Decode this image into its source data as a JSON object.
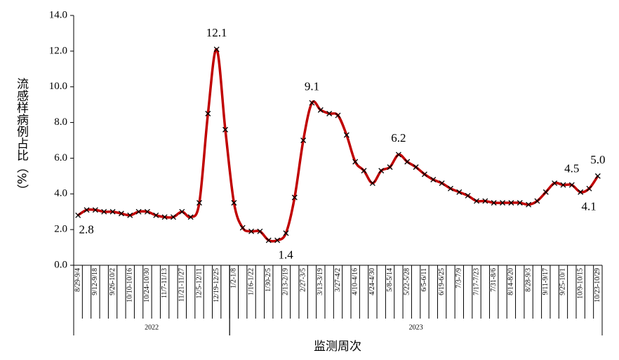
{
  "chart_data": {
    "type": "line",
    "y_label": "流感样病例占比（%）",
    "x_label": "监测周次",
    "categories": [
      "8/29-9/4",
      null,
      "9/12-9/18",
      null,
      "9/26-10/2",
      null,
      "10/10-10/16",
      null,
      "10/24-10/30",
      null,
      "11/7-11/13",
      null,
      "11/21-11/27",
      null,
      "12/5-12/11",
      null,
      "12/19-12/25",
      null,
      "1/2-1/8",
      null,
      "1/16-1/22",
      null,
      "1/30-2/5",
      null,
      "2/13-2/19",
      null,
      "2/27-3/5",
      null,
      "3/13-3/19",
      null,
      "3/27-4/2",
      null,
      "4/10-4/16",
      null,
      "4/24-4/30",
      null,
      "5/8-5/14",
      null,
      "5/22-5/28",
      null,
      "6/5-6/11",
      null,
      "6/19-6/25",
      null,
      "7/3-7/9",
      null,
      "7/17-7/23",
      null,
      "7/31-8/6",
      null,
      "8/14-8/20",
      null,
      "8/28-9/3",
      null,
      "9/11-9/17",
      null,
      "9/25-10/1",
      null,
      "10/9-10/15",
      null,
      "10/23-10/29"
    ],
    "groups": [
      {
        "label": "2022",
        "size": 18
      },
      {
        "label": "2023",
        "size": 43
      }
    ],
    "series": [
      {
        "name": "流感样病例占比",
        "color": "#c00000",
        "marker_color": "#000000",
        "values": [
          2.8,
          3.1,
          3.1,
          3.0,
          3.0,
          2.9,
          2.8,
          3.0,
          3.0,
          2.8,
          2.7,
          2.7,
          3.0,
          2.7,
          3.5,
          8.5,
          12.1,
          7.6,
          3.5,
          2.1,
          1.9,
          1.9,
          1.4,
          1.4,
          1.8,
          3.8,
          7.0,
          9.1,
          8.7,
          8.5,
          8.4,
          7.3,
          5.8,
          5.3,
          4.6,
          5.3,
          5.5,
          6.2,
          5.8,
          5.5,
          5.1,
          4.8,
          4.6,
          4.3,
          4.1,
          3.9,
          3.6,
          3.6,
          3.5,
          3.5,
          3.5,
          3.5,
          3.4,
          3.6,
          4.1,
          4.6,
          4.5,
          4.5,
          4.1,
          4.3,
          5.0
        ],
        "value_labels": [
          "2.8",
          null,
          null,
          null,
          null,
          null,
          null,
          null,
          null,
          null,
          null,
          null,
          null,
          null,
          null,
          null,
          "12.1",
          null,
          null,
          null,
          null,
          null,
          null,
          "1.4",
          null,
          null,
          null,
          "9.1",
          null,
          null,
          null,
          null,
          null,
          null,
          null,
          null,
          null,
          "6.2",
          null,
          null,
          null,
          null,
          null,
          null,
          null,
          null,
          null,
          null,
          null,
          null,
          null,
          null,
          null,
          null,
          null,
          null,
          null,
          "4.5",
          "4.1",
          null,
          "5.0"
        ]
      }
    ],
    "ylim": [
      0,
      14
    ],
    "yticks": [
      {
        "value": 0,
        "label": "0.0"
      },
      {
        "value": 2,
        "label": "2.0"
      },
      {
        "value": 4,
        "label": "4.0"
      },
      {
        "value": 6,
        "label": "6.0"
      },
      {
        "value": 8,
        "label": "8.0"
      },
      {
        "value": 10,
        "label": "10.0"
      },
      {
        "value": 12,
        "label": "12.0"
      },
      {
        "value": 14,
        "label": "14.0"
      }
    ],
    "grid": false
  }
}
